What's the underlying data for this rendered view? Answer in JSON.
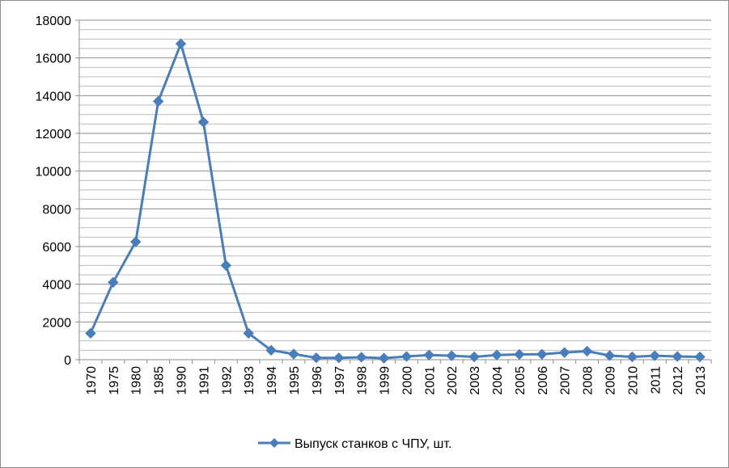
{
  "chart_data": {
    "type": "line",
    "title": "",
    "xlabel": "",
    "ylabel": "",
    "ylim": [
      0,
      18000
    ],
    "y_ticks": [
      "0",
      "2000",
      "4000",
      "6000",
      "8000",
      "10000",
      "12000",
      "14000",
      "16000",
      "18000"
    ],
    "grid": "horizontal",
    "legend_position": "bottom",
    "categories": [
      "1970",
      "1975",
      "1980",
      "1985",
      "1990",
      "1991",
      "1992",
      "1993",
      "1994",
      "1995",
      "1996",
      "1997",
      "1998",
      "1999",
      "2000",
      "2001",
      "2002",
      "2003",
      "2004",
      "2005",
      "2006",
      "2007",
      "2008",
      "2009",
      "2010",
      "2011",
      "2012",
      "2013"
    ],
    "series": [
      {
        "name": "Выпуск станков с ЧПУ, шт.",
        "color": "#4a7ebb",
        "marker": "diamond",
        "values": [
          1400,
          4100,
          6250,
          13700,
          16750,
          12600,
          5000,
          1400,
          500,
          300,
          100,
          100,
          130,
          80,
          170,
          250,
          210,
          150,
          250,
          280,
          290,
          380,
          450,
          220,
          150,
          210,
          170,
          150
        ]
      }
    ]
  }
}
